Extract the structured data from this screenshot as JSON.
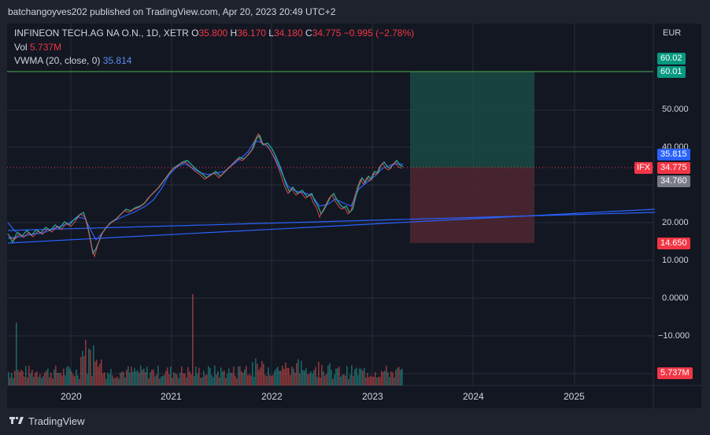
{
  "header": {
    "publisher": "batchangoyves202 published on TradingView.com, Apr 20, 2023 20:49 UTC+2"
  },
  "legend": {
    "symbol": "INFINEON TECH.AG NA O.N., 1D, XETR",
    "open_label": "O",
    "open": "35.800",
    "high_label": "H",
    "high": "36.170",
    "low_label": "L",
    "low": "34.180",
    "close_label": "C",
    "close": "34.775",
    "change": "−0.995 (−2.78%)",
    "vol_label": "Vol",
    "vol": "5.737M",
    "vwma_label": "VWMA (20, close, 0)",
    "vwma": "35.814"
  },
  "currency": "EUR",
  "y_axis": [
    "50.000",
    "40.000",
    "20.000",
    "10.000",
    "0.0000",
    "−10.000"
  ],
  "x_axis": [
    "2020",
    "2021",
    "2022",
    "2023",
    "2024",
    "2025"
  ],
  "price_tags": {
    "target_top": "60.02",
    "target": "60.01",
    "vwma": "35.815",
    "symbol": "IFX",
    "last": "34.775",
    "entry": "34.760",
    "stop": "14.650",
    "volume": "5.737M"
  },
  "colors": {
    "up": "#26a69a",
    "down": "#ef5350",
    "trendline": "#2962ff",
    "target_zone": "#1d4a44",
    "stop_zone": "#4a2631",
    "green_tag": "#089981",
    "red_tag": "#f23645",
    "blue_tag": "#2962ff"
  },
  "footer": {
    "brand": "TradingView",
    "logo_icon": "tradingview-logo-icon"
  }
}
